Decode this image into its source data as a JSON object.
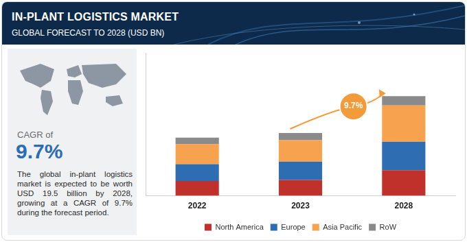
{
  "chart_data": {
    "type": "bar",
    "title": "IN-PLANT LOGISTICS MARKET",
    "subtitle": "GLOBAL FORECAST TO 2028 (USD BN)",
    "categories": [
      "2022",
      "2023",
      "2028"
    ],
    "series": [
      {
        "name": "North America",
        "color": "#c0312b",
        "values": [
          2.9,
          3.1,
          5.0
        ]
      },
      {
        "name": "Europe",
        "color": "#2f6db3",
        "values": [
          3.3,
          3.6,
          5.6
        ]
      },
      {
        "name": "Asia Pacific",
        "color": "#f7a24f",
        "values": [
          3.9,
          4.2,
          7.1
        ]
      },
      {
        "name": "RoW",
        "color": "#8a8a8a",
        "values": [
          1.3,
          1.4,
          1.8
        ]
      }
    ],
    "stacked": true,
    "legend": "bottom",
    "tick_labels": "x",
    "grid": false,
    "ylim": [
      0,
      28
    ],
    "annotations": [
      "9.7%"
    ]
  },
  "panel": {
    "cagr_label": "CAGR of",
    "cagr_value": "9.7%",
    "description": "The global in-plant logistics market is expected to be worth USD 19.5 billion by 2028, growing at a CAGR of 9.7% during the forecast period."
  }
}
